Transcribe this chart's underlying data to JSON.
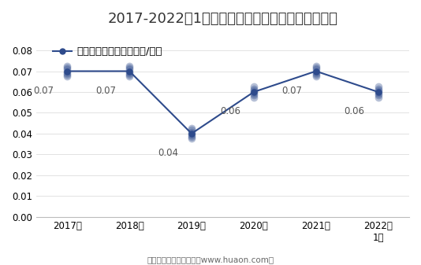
{
  "title": "2017-2022年1月大连商品交易所豆粕期权成交均价",
  "legend_label": "豆粕期权成交均价（万元/手）",
  "x_labels": [
    "2017年",
    "2018年",
    "2019年",
    "2020年",
    "2021年",
    "2022年\n1月"
  ],
  "y_values": [
    0.07,
    0.07,
    0.04,
    0.06,
    0.07,
    0.06
  ],
  "data_labels": [
    "0.07",
    "0.07",
    "0.04",
    "0.06",
    "0.07",
    "0.06"
  ],
  "label_dx": [
    -0.38,
    -0.38,
    -0.38,
    -0.38,
    -0.38,
    -0.38
  ],
  "label_dy": [
    -0.007,
    -0.007,
    -0.007,
    -0.007,
    -0.007,
    -0.007
  ],
  "ylim": [
    0,
    0.088
  ],
  "yticks": [
    0,
    0.01,
    0.02,
    0.03,
    0.04,
    0.05,
    0.06,
    0.07,
    0.08
  ],
  "line_color": "#2e4b8c",
  "marker_color": "#2e4b8c",
  "bg_color": "#ffffff",
  "footer": "制图：华经产业研究院（www.huaon.com）",
  "title_fontsize": 13,
  "legend_fontsize": 9.5,
  "label_fontsize": 8.5,
  "tick_fontsize": 8.5,
  "footer_fontsize": 7.5
}
